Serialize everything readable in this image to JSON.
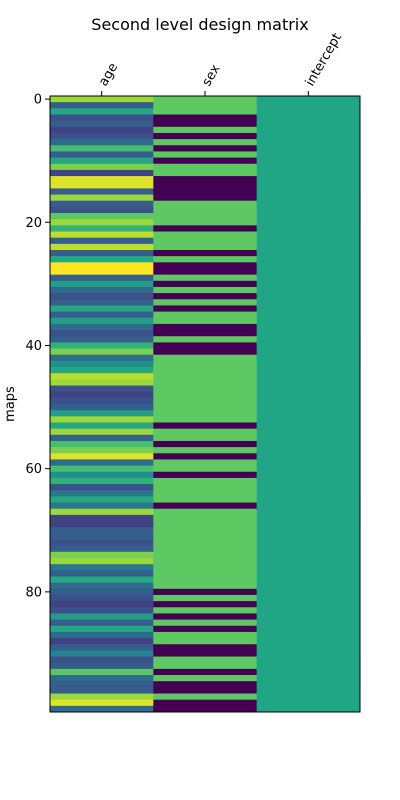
{
  "chart_data": {
    "type": "heatmap",
    "title": "Second level design matrix",
    "xlabel": "",
    "ylabel": "maps",
    "columns": [
      "age",
      "sex",
      "intercept"
    ],
    "row_count": 100,
    "yticks": [
      0,
      20,
      40,
      60,
      80
    ],
    "colormap": "viridis",
    "columns_data": {
      "age": [
        0.85,
        0.3,
        0.6,
        0.25,
        0.3,
        0.2,
        0.25,
        0.35,
        0.7,
        0.3,
        0.6,
        0.8,
        0.2,
        0.95,
        0.95,
        0.3,
        0.85,
        0.3,
        0.25,
        0.75,
        0.85,
        0.65,
        0.9,
        0.3,
        0.9,
        0.3,
        0.6,
        1.0,
        1.0,
        0.3,
        0.55,
        0.35,
        0.25,
        0.3,
        0.6,
        0.3,
        0.55,
        0.35,
        0.25,
        0.3,
        0.65,
        0.8,
        0.35,
        0.5,
        0.6,
        0.9,
        0.85,
        0.25,
        0.2,
        0.25,
        0.3,
        0.55,
        0.85,
        0.6,
        0.85,
        0.3,
        0.7,
        0.8,
        0.95,
        0.35,
        0.7,
        0.5,
        0.65,
        0.25,
        0.4,
        0.6,
        0.4,
        0.85,
        0.2,
        0.2,
        0.3,
        0.3,
        0.25,
        0.3,
        0.8,
        0.85,
        0.4,
        0.3,
        0.6,
        0.35,
        0.3,
        0.25,
        0.2,
        0.25,
        0.55,
        0.3,
        0.6,
        0.35,
        0.2,
        0.3,
        0.45,
        0.25,
        0.3,
        0.75,
        0.35,
        0.3,
        0.3,
        0.85,
        0.95,
        0.35
      ],
      "sex": [
        1,
        1,
        1,
        0,
        0,
        1,
        0,
        1,
        0,
        1,
        0,
        1,
        1,
        0,
        0,
        0,
        0,
        1,
        1,
        1,
        1,
        0,
        1,
        1,
        1,
        0,
        1,
        0,
        0,
        1,
        0,
        1,
        0,
        1,
        0,
        1,
        1,
        0,
        0,
        1,
        0,
        0,
        1,
        1,
        1,
        1,
        1,
        1,
        1,
        1,
        1,
        1,
        1,
        0,
        1,
        1,
        0,
        1,
        0,
        1,
        1,
        0,
        1,
        1,
        1,
        1,
        0,
        1,
        1,
        1,
        1,
        1,
        1,
        1,
        1,
        1,
        1,
        1,
        1,
        1,
        0,
        1,
        0,
        1,
        0,
        1,
        0,
        1,
        1,
        0,
        0,
        1,
        1,
        0,
        1,
        0,
        0,
        1,
        0,
        0
      ],
      "intercept": [
        0.5
      ]
    }
  }
}
